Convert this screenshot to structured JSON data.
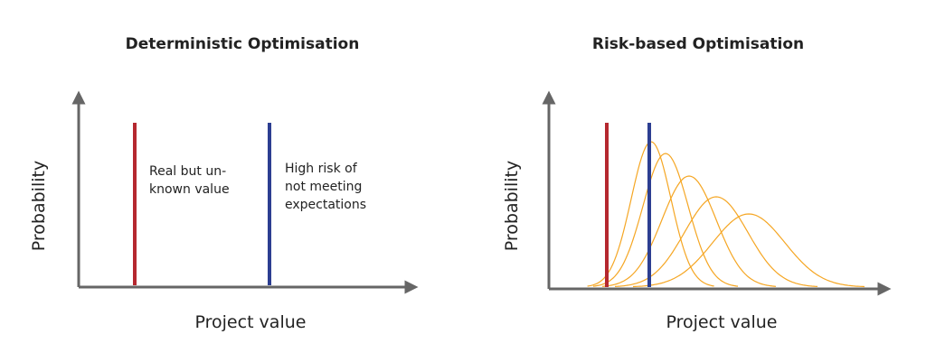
{
  "panels": [
    {
      "title": "Deterministic Optimisation",
      "y_label": "Probability",
      "x_label": "Project value",
      "annotations": [
        {
          "lines": [
            "Real but un-",
            "known value"
          ]
        },
        {
          "lines": [
            "High risk of",
            "not meeting",
            "expectations"
          ]
        }
      ]
    },
    {
      "title": "Risk-based Optimisation",
      "y_label": "Probability",
      "x_label": "Project value"
    }
  ]
}
